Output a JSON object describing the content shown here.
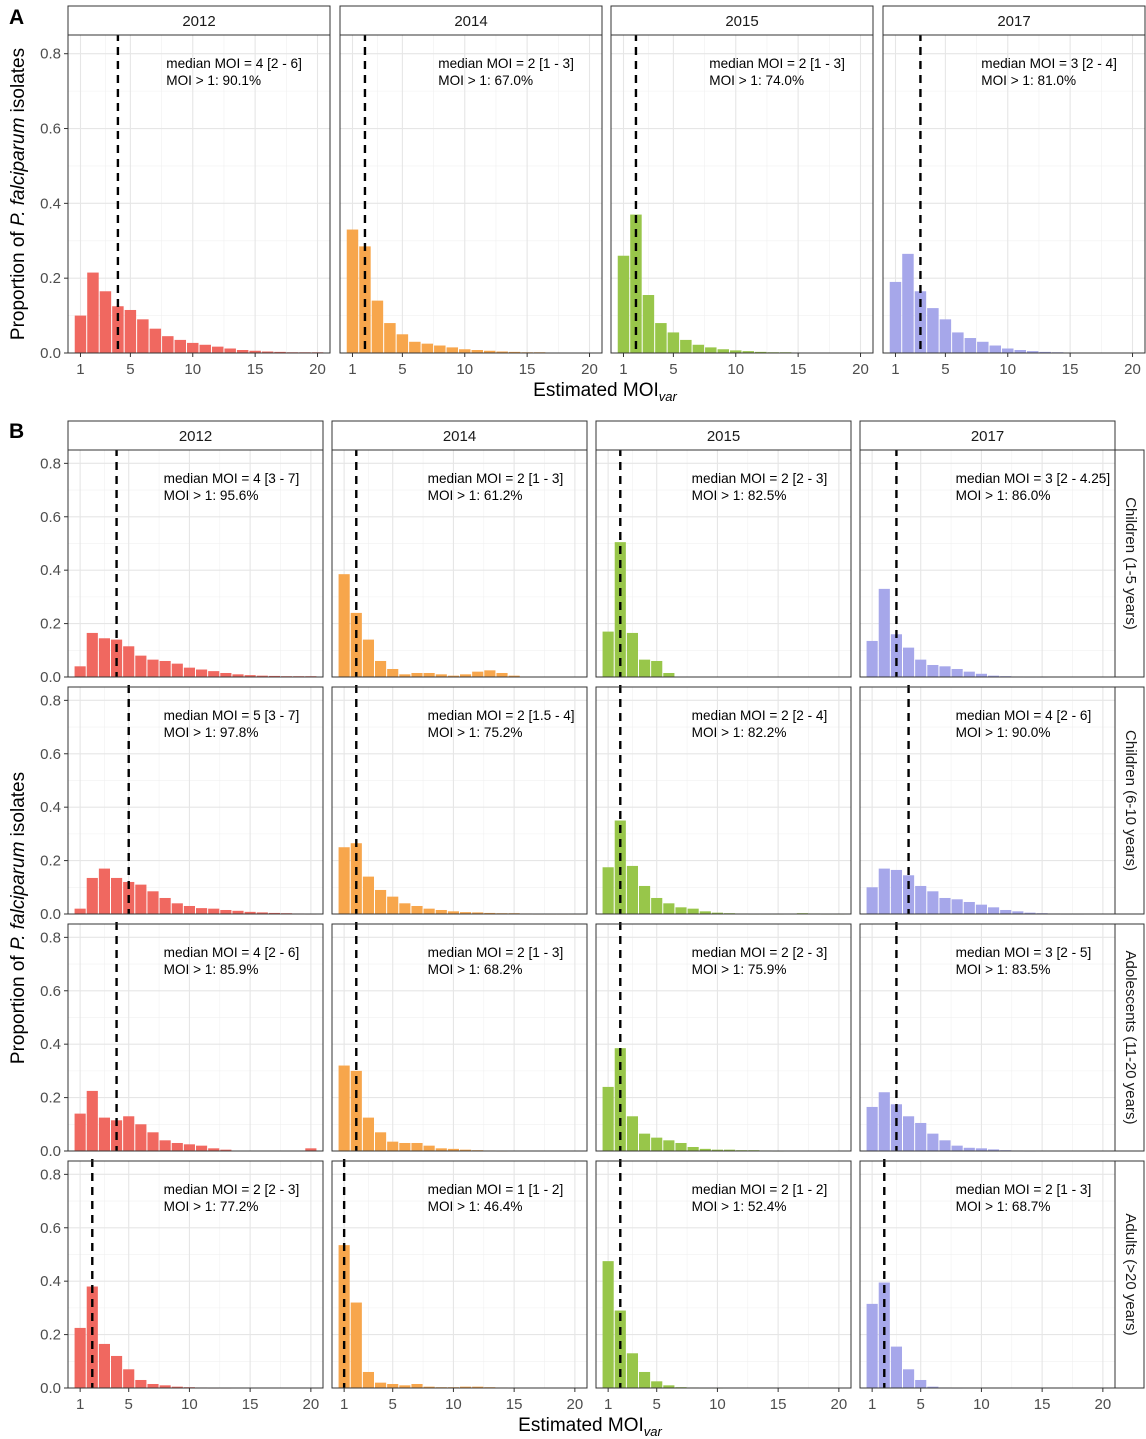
{
  "panel_labels": {
    "a": "A",
    "b": "B"
  },
  "years": [
    "2012",
    "2014",
    "2015",
    "2017"
  ],
  "colors": {
    "2012": "#f06860",
    "2014": "#f7a64c",
    "2015": "#98c64a",
    "2017": "#a6a7ea"
  },
  "age_groups": [
    "Children (1-5 years)",
    "Children (6-10 years)",
    "Adolescents (11-20 years)",
    "Adults (>20 years)"
  ],
  "axis_titles": {
    "y_prefix": "Proportion of ",
    "y_italic": "P. falciparum",
    "y_suffix": " isolates",
    "x_main": "Estimated MOI",
    "x_sub": "var"
  },
  "y_ticks": [
    "0.0",
    "0.2",
    "0.4",
    "0.6",
    "0.8"
  ],
  "x_ticks": [
    "1",
    "5",
    "10",
    "15",
    "20"
  ],
  "chart_data": [
    {
      "type": "bar",
      "panel": "A",
      "xlabel": "Estimated MOIvar",
      "ylabel": "Proportion of P. falciparum isolates",
      "xlim": [
        0,
        21
      ],
      "ylim": [
        0,
        0.85
      ],
      "facets": [
        {
          "year": "2012",
          "median": 4,
          "annotation": [
            "median MOI = 4 [2 - 6]",
            "MOI > 1: 90.1%"
          ],
          "values": [
            0.1,
            0.215,
            0.165,
            0.125,
            0.115,
            0.09,
            0.065,
            0.045,
            0.035,
            0.027,
            0.022,
            0.017,
            0.012,
            0.008,
            0.006,
            0.004,
            0.003,
            0.002,
            0.002,
            0.002
          ]
        },
        {
          "year": "2014",
          "median": 2,
          "annotation": [
            "median MOI = 2 [1 - 3]",
            "MOI > 1: 67.0%"
          ],
          "values": [
            0.33,
            0.285,
            0.14,
            0.08,
            0.05,
            0.03,
            0.025,
            0.02,
            0.015,
            0.01,
            0.008,
            0.006,
            0.004,
            0.003,
            0.002,
            0.002,
            0.001,
            0.001,
            0.001,
            0.001
          ]
        },
        {
          "year": "2015",
          "median": 2,
          "annotation": [
            "median MOI = 2 [1 - 3]",
            "MOI > 1: 74.0%"
          ],
          "values": [
            0.26,
            0.37,
            0.155,
            0.08,
            0.055,
            0.035,
            0.022,
            0.015,
            0.01,
            0.007,
            0.005,
            0.003,
            0.002,
            0.002,
            0.001,
            0.001,
            0.001,
            0.001,
            0.001,
            0.001
          ]
        },
        {
          "year": "2017",
          "median": 3,
          "annotation": [
            "median MOI = 3 [2 - 4]",
            "MOI > 1: 81.0%"
          ],
          "values": [
            0.19,
            0.265,
            0.165,
            0.12,
            0.09,
            0.055,
            0.04,
            0.03,
            0.02,
            0.012,
            0.008,
            0.005,
            0.003,
            0.002,
            0.001,
            0.001,
            0.001,
            0.001,
            0.001,
            0.001
          ]
        }
      ]
    },
    {
      "type": "bar",
      "panel": "B",
      "xlabel": "Estimated MOIvar",
      "ylabel": "Proportion of P. falciparum isolates",
      "xlim": [
        0,
        21
      ],
      "ylim": [
        0,
        0.85
      ],
      "rows": [
        {
          "group": "Children (1-5 years)",
          "facets": [
            {
              "year": "2012",
              "median": 4,
              "annotation": [
                "median MOI = 4 [3 - 7]",
                "MOI > 1: 95.6%"
              ],
              "values": [
                0.04,
                0.165,
                0.145,
                0.14,
                0.115,
                0.08,
                0.065,
                0.06,
                0.05,
                0.035,
                0.028,
                0.022,
                0.015,
                0.01,
                0.007,
                0.005,
                0.004,
                0.003,
                0.003,
                0.003
              ]
            },
            {
              "year": "2014",
              "median": 2,
              "annotation": [
                "median MOI = 2 [1 - 3]",
                "MOI > 1: 61.2%"
              ],
              "values": [
                0.385,
                0.24,
                0.14,
                0.06,
                0.03,
                0.01,
                0.015,
                0.015,
                0.01,
                0.005,
                0.01,
                0.02,
                0.025,
                0.015,
                0.005,
                0.0,
                0.0,
                0.0,
                0.0,
                0.0
              ]
            },
            {
              "year": "2015",
              "median": 2,
              "annotation": [
                "median MOI = 2 [2 - 3]",
                "MOI > 1: 82.5%"
              ],
              "values": [
                0.17,
                0.505,
                0.165,
                0.065,
                0.06,
                0.015,
                0.0,
                0.0,
                0.0,
                0.0,
                0.0,
                0.0,
                0.0,
                0.0,
                0.0,
                0.0,
                0.0,
                0.0,
                0.0,
                0.0
              ]
            },
            {
              "year": "2017",
              "median": 3,
              "annotation": [
                "median MOI = 3 [2 - 4.25]",
                "MOI > 1: 86.0%"
              ],
              "values": [
                0.135,
                0.33,
                0.16,
                0.11,
                0.065,
                0.045,
                0.04,
                0.03,
                0.02,
                0.012,
                0.005,
                0.003,
                0.002,
                0.001,
                0.001,
                0.0,
                0.0,
                0.0,
                0.0,
                0.0
              ]
            }
          ]
        },
        {
          "group": "Children (6-10 years)",
          "facets": [
            {
              "year": "2012",
              "median": 5,
              "annotation": [
                "median MOI = 5 [3 - 7]",
                "MOI > 1: 97.8%"
              ],
              "values": [
                0.02,
                0.135,
                0.17,
                0.135,
                0.12,
                0.11,
                0.085,
                0.06,
                0.04,
                0.03,
                0.022,
                0.02,
                0.015,
                0.012,
                0.008,
                0.006,
                0.004,
                0.003,
                0.002,
                0.001
              ]
            },
            {
              "year": "2014",
              "median": 2,
              "annotation": [
                "median MOI = 2 [1.5 - 4]",
                "MOI > 1: 75.2%"
              ],
              "values": [
                0.25,
                0.265,
                0.14,
                0.09,
                0.065,
                0.04,
                0.03,
                0.02,
                0.015,
                0.01,
                0.007,
                0.006,
                0.004,
                0.003,
                0.003,
                0.002,
                0.001,
                0.001,
                0.001,
                0.001
              ]
            },
            {
              "year": "2015",
              "median": 2,
              "annotation": [
                "median MOI = 2 [2 - 4]",
                "MOI > 1: 82.2%"
              ],
              "values": [
                0.175,
                0.35,
                0.18,
                0.105,
                0.06,
                0.04,
                0.025,
                0.02,
                0.01,
                0.005,
                0.003,
                0.002,
                0.001,
                0.001,
                0.001,
                0.0,
                0.003,
                0.002,
                0.001,
                0.001
              ]
            },
            {
              "year": "2017",
              "median": 4,
              "annotation": [
                "median MOI = 4 [2 - 6]",
                "MOI > 1: 90.0%"
              ],
              "values": [
                0.1,
                0.17,
                0.165,
                0.145,
                0.105,
                0.085,
                0.06,
                0.055,
                0.045,
                0.035,
                0.025,
                0.015,
                0.01,
                0.005,
                0.003,
                0.002,
                0.001,
                0.001,
                0.0,
                0.0
              ]
            }
          ]
        },
        {
          "group": "Adolescents (11-20 years)",
          "facets": [
            {
              "year": "2012",
              "median": 4,
              "annotation": [
                "median MOI = 4 [2 - 6]",
                "MOI > 1: 85.9%"
              ],
              "values": [
                0.14,
                0.225,
                0.125,
                0.115,
                0.13,
                0.1,
                0.07,
                0.04,
                0.03,
                0.025,
                0.02,
                0.01,
                0.005,
                0.0,
                0.0,
                0.0,
                0.0,
                0.0,
                0.0,
                0.01
              ]
            },
            {
              "year": "2014",
              "median": 2,
              "annotation": [
                "median MOI = 2 [1 - 3]",
                "MOI > 1: 68.2%"
              ],
              "values": [
                0.32,
                0.3,
                0.125,
                0.07,
                0.035,
                0.03,
                0.03,
                0.02,
                0.01,
                0.008,
                0.005,
                0.003,
                0.002,
                0.001,
                0.0,
                0.0,
                0.0,
                0.0,
                0.0,
                0.0
              ]
            },
            {
              "year": "2015",
              "median": 2,
              "annotation": [
                "median MOI = 2 [2 - 3]",
                "MOI > 1: 75.9%"
              ],
              "values": [
                0.24,
                0.385,
                0.13,
                0.065,
                0.05,
                0.04,
                0.03,
                0.015,
                0.008,
                0.005,
                0.005,
                0.003,
                0.003,
                0.002,
                0.001,
                0.0,
                0.0,
                0.0,
                0.0,
                0.0
              ]
            },
            {
              "year": "2017",
              "median": 3,
              "annotation": [
                "median MOI = 3 [2 - 5]",
                "MOI > 1: 83.5%"
              ],
              "values": [
                0.165,
                0.22,
                0.175,
                0.13,
                0.105,
                0.065,
                0.04,
                0.02,
                0.012,
                0.01,
                0.006,
                0.003,
                0.002,
                0.001,
                0.0,
                0.0,
                0.0,
                0.0,
                0.0,
                0.0
              ]
            }
          ]
        },
        {
          "group": "Adults (>20 years)",
          "facets": [
            {
              "year": "2012",
              "median": 2,
              "annotation": [
                "median MOI = 2 [2 - 3]",
                "MOI > 1: 77.2%"
              ],
              "values": [
                0.225,
                0.38,
                0.165,
                0.12,
                0.07,
                0.03,
                0.015,
                0.01,
                0.005,
                0.003,
                0.002,
                0.001,
                0.001,
                0.0,
                0.0,
                0.0,
                0.0,
                0.0,
                0.0,
                0.0
              ]
            },
            {
              "year": "2014",
              "median": 1,
              "annotation": [
                "median MOI = 1 [1 - 2]",
                "MOI > 1: 46.4%"
              ],
              "values": [
                0.535,
                0.32,
                0.06,
                0.02,
                0.015,
                0.01,
                0.015,
                0.005,
                0.003,
                0.003,
                0.005,
                0.005,
                0.003,
                0.002,
                0.001,
                0.0,
                0.0,
                0.0,
                0.0,
                0.0
              ]
            },
            {
              "year": "2015",
              "median": 2,
              "annotation": [
                "median MOI = 2 [1 - 2]",
                "MOI > 1: 52.4%"
              ],
              "values": [
                0.475,
                0.29,
                0.13,
                0.06,
                0.025,
                0.01,
                0.003,
                0.002,
                0.001,
                0.001,
                0.0,
                0.0,
                0.0,
                0.0,
                0.0,
                0.0,
                0.0,
                0.0,
                0.0,
                0.0
              ]
            },
            {
              "year": "2017",
              "median": 2,
              "annotation": [
                "median MOI = 2 [1 - 3]",
                "MOI > 1: 68.7%"
              ],
              "values": [
                0.315,
                0.395,
                0.155,
                0.07,
                0.03,
                0.005,
                0.002,
                0.001,
                0.0,
                0.0,
                0.0,
                0.0,
                0.0,
                0.0,
                0.0,
                0.0,
                0.0,
                0.0,
                0.0,
                0.0
              ]
            }
          ]
        }
      ]
    }
  ]
}
